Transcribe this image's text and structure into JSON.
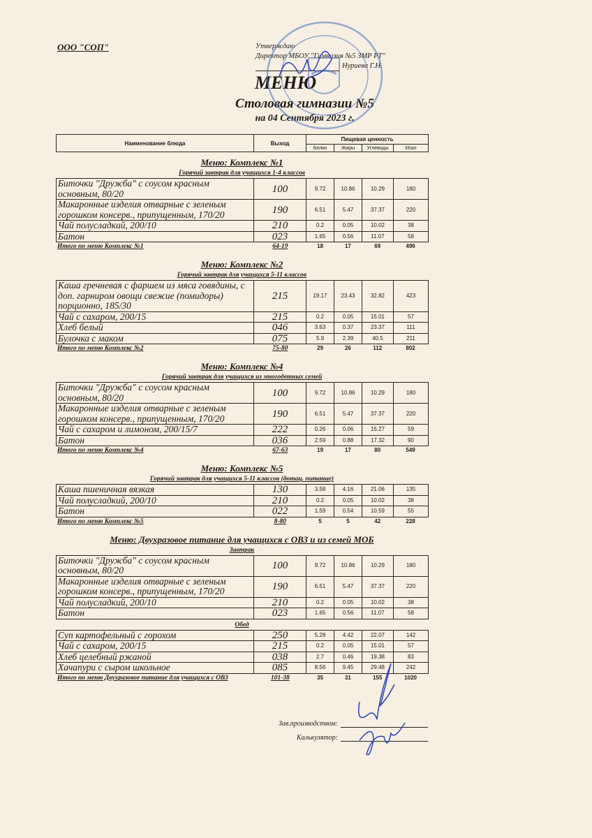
{
  "header": {
    "company": "ООО \"СОП\"",
    "approved": "Утверждаю",
    "director_line": "Директор МБОУ \"Гимназия №5 ЗМР РТ\"",
    "director_name": "Нуриева Г.Н."
  },
  "title": "МЕНЮ",
  "subtitle": "Столовая гимназии №5",
  "date": "на 04 Сентября 2023 г.",
  "table_header": {
    "name": "Наименование блюда",
    "output": "Выход",
    "nutrition": "Пищевая ценность",
    "proteins": "Белки",
    "fats": "Жиры",
    "carbs": "Углеводы",
    "kcal": "ККал"
  },
  "sections": [
    {
      "title": "Меню: Комплекс №1",
      "groups": [
        {
          "title": "Горячий завтрак для учащихся 1-4 классов",
          "rows": [
            {
              "name": "Биточки  \"Дружба\" с соусом красным основным, 80/20",
              "output": "100",
              "values": [
                "9.72",
                "10.86",
                "10.29",
                "180"
              ]
            },
            {
              "name": "Макаронные изделия отварные с зеленым горошком консерв., припущенным, 170/20",
              "output": "190",
              "values": [
                "6.51",
                "5.47",
                "37.37",
                "220"
              ]
            },
            {
              "name": "Чай полусладкий, 200/10",
              "output": "210",
              "values": [
                "0.2",
                "0.05",
                "10.02",
                "38"
              ]
            },
            {
              "name": "Батон",
              "output": "023",
              "values": [
                "1.65",
                "0.56",
                "11.07",
                "58"
              ]
            }
          ]
        }
      ],
      "total": {
        "label": "Итого по меню Комплекс №1",
        "output": "64-19",
        "values": [
          "18",
          "17",
          "69",
          "496"
        ]
      }
    },
    {
      "title": "Меню: Комплекс №2",
      "groups": [
        {
          "title": "Горячий завтрак для учащихся 5-11 классов",
          "rows": [
            {
              "name": "Каша гречневая с фаршем из мяса говядины, с доп. гарниром овощи свежие (помидоры) порционно, 185/30",
              "output": "215",
              "values": [
                "19.17",
                "23.43",
                "32.82",
                "423"
              ]
            },
            {
              "name": "Чай с сахаром, 200/15",
              "output": "215",
              "values": [
                "0.2",
                "0.05",
                "15.01",
                "57"
              ]
            },
            {
              "name": "Хлеб белый",
              "output": "046",
              "values": [
                "3.63",
                "0.37",
                "23.37",
                "111"
              ]
            },
            {
              "name": "Булочка с маком",
              "output": "075",
              "values": [
                "5.9",
                "2.39",
                "40.5",
                "211"
              ]
            }
          ]
        }
      ],
      "total": {
        "label": "Итого по меню Комплекс №2",
        "output": "75-80",
        "values": [
          "29",
          "26",
          "112",
          "802"
        ]
      }
    },
    {
      "title": "Меню: Комплекс №4",
      "groups": [
        {
          "title": "Горячий завтрак для учащихся из многодетных семей",
          "rows": [
            {
              "name": "Биточки  \"Дружба\" с соусом красным основным, 80/20",
              "output": "100",
              "values": [
                "9.72",
                "10.86",
                "10.29",
                "180"
              ]
            },
            {
              "name": "Макаронные изделия отварные с зеленым горошком консерв., припущенным, 170/20",
              "output": "190",
              "values": [
                "6.51",
                "5.47",
                "37.37",
                "220"
              ]
            },
            {
              "name": "Чай с сахаром и лимоном, 200/15/7",
              "output": "222",
              "values": [
                "0.26",
                "0.06",
                "15.27",
                "59"
              ]
            },
            {
              "name": "Батон",
              "output": "036",
              "values": [
                "2.59",
                "0.88",
                "17.32",
                "90"
              ]
            }
          ]
        }
      ],
      "total": {
        "label": "Итого по меню Комплекс №4",
        "output": "67-63",
        "values": [
          "19",
          "17",
          "80",
          "549"
        ]
      }
    },
    {
      "title": "Меню: Комплекс №5",
      "groups": [
        {
          "title": "Горячий завтрак для учащихся 5-11 классов (дотац. питание)",
          "rows": [
            {
              "name": "Каша пшеничная вязкая",
              "output": "130",
              "values": [
                "3.58",
                "4.16",
                "21.06",
                "135"
              ]
            },
            {
              "name": "Чай полусладкий, 200/10",
              "output": "210",
              "values": [
                "0.2",
                "0.05",
                "10.02",
                "38"
              ]
            },
            {
              "name": "Батон",
              "output": "022",
              "values": [
                "1.59",
                "0.54",
                "10.59",
                "55"
              ]
            }
          ]
        }
      ],
      "total": {
        "label": "Итого по меню Комплекс №5",
        "output": "8-80",
        "values": [
          "5",
          "5",
          "42",
          "228"
        ]
      }
    },
    {
      "title": "Меню: Двухразовое питание для учащихся с ОВЗ и из семей МОБ",
      "groups": [
        {
          "title": "Завтрак",
          "rows": [
            {
              "name": "Биточки  \"Дружба\" с соусом красным основным, 80/20",
              "output": "100",
              "values": [
                "9.72",
                "10.86",
                "10.29",
                "180"
              ]
            },
            {
              "name": "Макаронные изделия отварные с зеленым горошком консерв., припущенным, 170/20",
              "output": "190",
              "values": [
                "6.51",
                "5.47",
                "37.37",
                "220"
              ]
            },
            {
              "name": "Чай полусладкий, 200/10",
              "output": "210",
              "values": [
                "0.2",
                "0.05",
                "10.02",
                "38"
              ]
            },
            {
              "name": "Батон",
              "output": "023",
              "values": [
                "1.65",
                "0.56",
                "11.07",
                "58"
              ]
            }
          ]
        },
        {
          "title": "Обед",
          "rows": [
            {
              "name": "Суп картофельный с горохом",
              "output": "250",
              "values": [
                "5.28",
                "4.42",
                "22.07",
                "142"
              ]
            },
            {
              "name": "Чай с сахаром, 200/15",
              "output": "215",
              "values": [
                "0.2",
                "0.05",
                "15.01",
                "57"
              ]
            },
            {
              "name": "Хлеб  целебный ржаной",
              "output": "038",
              "values": [
                "2.7",
                "0.46",
                "19.38",
                "83"
              ]
            },
            {
              "name": "Хачапури с сыром школьное",
              "output": "085",
              "values": [
                "8.56",
                "9.45",
                "29.48",
                "242"
              ]
            }
          ]
        }
      ],
      "total": {
        "label": "Итого по меню Двухразовое питание для учащихся с ОВЗ",
        "output": "101-38",
        "values": [
          "35",
          "31",
          "155",
          "1020"
        ]
      }
    }
  ],
  "footer": {
    "production_head": "Зав.производством:",
    "calculator": "Калькулятор:"
  },
  "colors": {
    "paper": "#f7efe2",
    "ink": "#1d1a17",
    "stamp": "#4a6fc0",
    "signature": "#2b3fb8"
  }
}
